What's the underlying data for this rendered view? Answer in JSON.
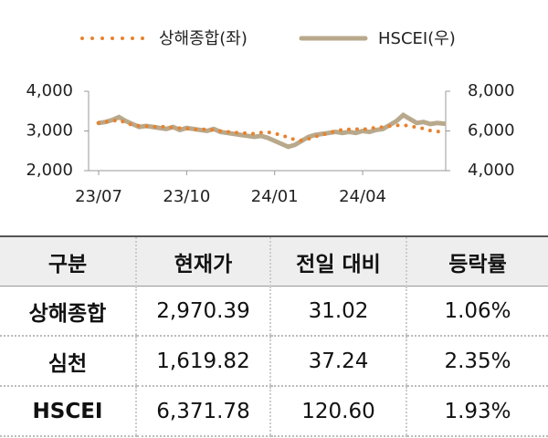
{
  "chart_data": {
    "type": "line",
    "legend": "top",
    "categories": [
      "23/07",
      null,
      null,
      null,
      null,
      null,
      null,
      null,
      null,
      null,
      null,
      null,
      null,
      "23/10",
      null,
      null,
      null,
      null,
      null,
      null,
      null,
      null,
      null,
      null,
      null,
      null,
      "24/01",
      null,
      null,
      null,
      null,
      null,
      null,
      null,
      null,
      null,
      null,
      null,
      null,
      "24/04",
      null,
      null,
      null,
      null,
      null,
      null,
      null,
      null,
      null,
      null,
      null,
      null
    ],
    "ylim": [
      2000,
      4000
    ],
    "yticks": [
      {
        "value": 2000,
        "label": "2,000"
      },
      {
        "value": 3000,
        "label": "3,000"
      },
      {
        "value": 4000,
        "label": "4,000"
      }
    ],
    "y2lim": [
      4000,
      8000
    ],
    "y2ticks": [
      {
        "value": 4000,
        "label": "4,000"
      },
      {
        "value": 6000,
        "label": "6,000"
      },
      {
        "value": 8000,
        "label": "8,000"
      }
    ],
    "series": [
      {
        "name": "상해종합(좌)",
        "color": "#e8822e",
        "style": "dotted",
        "values": [
          3200,
          3230,
          3250,
          3280,
          3200,
          3150,
          3130,
          3120,
          3110,
          3100,
          3110,
          3080,
          3070,
          3060,
          3040,
          3030,
          3050,
          3020,
          3000,
          2980,
          2960,
          2950,
          2940,
          2930,
          2960,
          2970,
          2930,
          2900,
          2830,
          2780,
          2760,
          2800,
          2860,
          2900,
          2950,
          3000,
          3030,
          3040,
          3050,
          3030,
          3070,
          3080,
          3100,
          3120,
          3140,
          3150,
          3120,
          3090,
          3060,
          3010,
          2990,
          2970
        ]
      },
      {
        "name": "HSCEI(우)",
        "color": "#b9a98c",
        "style": "solid",
        "axis": "y2",
        "values": [
          6400,
          6450,
          6550,
          6700,
          6500,
          6350,
          6200,
          6250,
          6200,
          6150,
          6100,
          6200,
          6050,
          6150,
          6100,
          6050,
          6000,
          6100,
          5950,
          5900,
          5850,
          5800,
          5750,
          5700,
          5750,
          5650,
          5500,
          5350,
          5200,
          5300,
          5500,
          5700,
          5800,
          5850,
          5900,
          5950,
          5900,
          5950,
          5900,
          6000,
          5950,
          6050,
          6100,
          6300,
          6500,
          6800,
          6600,
          6400,
          6450,
          6350,
          6400,
          6370
        ]
      }
    ]
  },
  "table": {
    "header": [
      "구분",
      "현재가",
      "전일 대비",
      "등락률"
    ],
    "rows": [
      [
        "상해종합",
        "2,970.39",
        "31.02",
        "1.06%"
      ],
      [
        "심천",
        "1,619.82",
        "37.24",
        "2.35%"
      ],
      [
        "HSCEI",
        "6,371.78",
        "120.60",
        "1.93%"
      ]
    ]
  }
}
